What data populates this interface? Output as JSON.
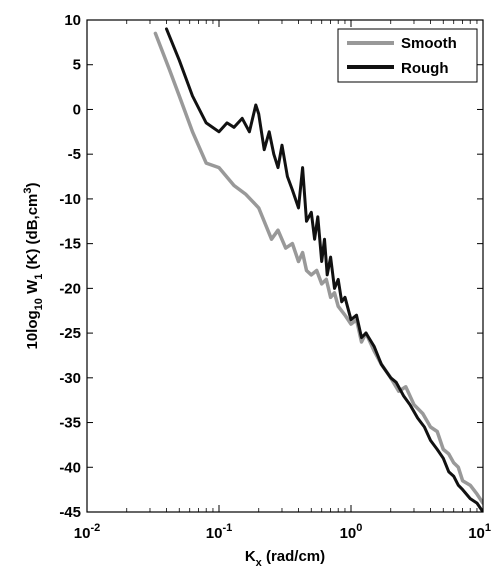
{
  "chart_data": {
    "type": "line",
    "title": "",
    "xlabel": {
      "base": "K",
      "sub": "x",
      "rest": " (rad/cm)"
    },
    "ylabel": {
      "p1": "10log",
      "s1": "10",
      "p2": " W",
      "s2": "1",
      "p3": " (K) (dB,cm",
      "sup": "3",
      "p4": ")"
    },
    "xscale": "log",
    "xlim": [
      0.01,
      10
    ],
    "ylim": [
      -45,
      10
    ],
    "x_ticks": [
      {
        "base": "10",
        "exp": "-2"
      },
      {
        "base": "10",
        "exp": "-1"
      },
      {
        "base": "10",
        "exp": "0"
      },
      {
        "base": "10",
        "exp": "1"
      }
    ],
    "y_ticks": [
      "10",
      "5",
      "0",
      "-5",
      "-10",
      "-15",
      "-20",
      "-25",
      "-30",
      "-35",
      "-40",
      "-45"
    ],
    "grid": false,
    "legend_position": "top-right",
    "series": [
      {
        "name": "Smooth",
        "color": "#999999",
        "x": [
          0.033,
          0.042,
          0.05,
          0.063,
          0.08,
          0.1,
          0.13,
          0.16,
          0.2,
          0.25,
          0.28,
          0.32,
          0.36,
          0.4,
          0.43,
          0.46,
          0.5,
          0.55,
          0.6,
          0.65,
          0.7,
          0.75,
          0.8,
          0.9,
          1.0,
          1.1,
          1.2,
          1.3,
          1.5,
          1.7,
          2.0,
          2.3,
          2.6,
          3.0,
          3.5,
          4.0,
          4.5,
          5.0,
          5.5,
          6.0,
          6.5,
          7.0,
          8.0,
          9.0,
          10.0
        ],
        "y": [
          8.5,
          4.5,
          1.5,
          -2.5,
          -6.0,
          -6.5,
          -8.5,
          -9.5,
          -11.0,
          -14.5,
          -13.5,
          -15.5,
          -15.0,
          -17.0,
          -16.0,
          -18.0,
          -18.5,
          -18.0,
          -19.5,
          -19.0,
          -21.0,
          -20.5,
          -22.0,
          -23.0,
          -24.0,
          -23.5,
          -26.0,
          -25.0,
          -27.0,
          -28.5,
          -30.0,
          -31.5,
          -31.0,
          -33.0,
          -34.0,
          -35.5,
          -36.0,
          -38.0,
          -38.5,
          -39.5,
          -40.0,
          -41.5,
          -42.0,
          -43.0,
          -44.0
        ]
      },
      {
        "name": "Rough",
        "color": "#111111",
        "x": [
          0.04,
          0.05,
          0.063,
          0.08,
          0.1,
          0.115,
          0.13,
          0.15,
          0.17,
          0.19,
          0.2,
          0.22,
          0.24,
          0.26,
          0.28,
          0.3,
          0.33,
          0.36,
          0.4,
          0.43,
          0.46,
          0.5,
          0.53,
          0.56,
          0.6,
          0.63,
          0.66,
          0.7,
          0.75,
          0.8,
          0.85,
          0.9,
          1.0,
          1.1,
          1.2,
          1.3,
          1.5,
          1.7,
          2.0,
          2.2,
          2.5,
          2.8,
          3.2,
          3.6,
          4.0,
          4.5,
          5.0,
          5.5,
          6.0,
          6.5,
          7.0,
          8.0,
          9.0,
          10.0
        ],
        "y": [
          9.0,
          5.5,
          1.5,
          -1.5,
          -2.5,
          -1.5,
          -2.0,
          -1.0,
          -2.5,
          0.5,
          -0.5,
          -4.5,
          -2.5,
          -5.0,
          -6.5,
          -4.0,
          -7.5,
          -9.0,
          -11.0,
          -6.5,
          -12.5,
          -11.5,
          -14.5,
          -12.0,
          -17.0,
          -14.5,
          -18.5,
          -16.5,
          -20.0,
          -19.0,
          -21.5,
          -21.0,
          -23.5,
          -23.0,
          -25.5,
          -25.0,
          -26.5,
          -28.5,
          -30.0,
          -30.5,
          -32.0,
          -33.0,
          -34.5,
          -35.5,
          -37.0,
          -38.0,
          -39.0,
          -40.5,
          -41.0,
          -42.0,
          -42.5,
          -43.5,
          -44.0,
          -45.0
        ]
      }
    ]
  }
}
